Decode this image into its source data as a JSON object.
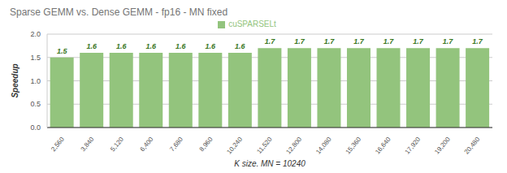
{
  "chart_data": {
    "type": "bar",
    "title": "Sparse GEMM vs. Dense GEMM - fp16 - MN fixed",
    "x_label": "K size, MN = 10240",
    "y_label": "Speedup",
    "categories": [
      "2,560",
      "3,840",
      "5,120",
      "6,400",
      "7,680",
      "8,960",
      "10,240",
      "11,520",
      "12,800",
      "14,080",
      "15,360",
      "16,640",
      "17,920",
      "19,200",
      "20,480"
    ],
    "series": [
      {
        "name": "cuSPARSELt",
        "color": "#93c47d",
        "values": [
          1.5,
          1.6,
          1.6,
          1.6,
          1.6,
          1.6,
          1.6,
          1.7,
          1.7,
          1.7,
          1.7,
          1.7,
          1.7,
          1.7,
          1.7
        ]
      }
    ],
    "ylim": [
      0,
      2
    ],
    "yticks": [
      {
        "value": 0,
        "label": "0.0"
      },
      {
        "value": 0.5,
        "label": "0.5"
      },
      {
        "value": 1,
        "label": "1.0"
      },
      {
        "value": 1.5,
        "label": "1.5"
      },
      {
        "value": 2,
        "label": "2.0"
      }
    ],
    "grid": true,
    "legend": "top",
    "data_labels": true
  }
}
